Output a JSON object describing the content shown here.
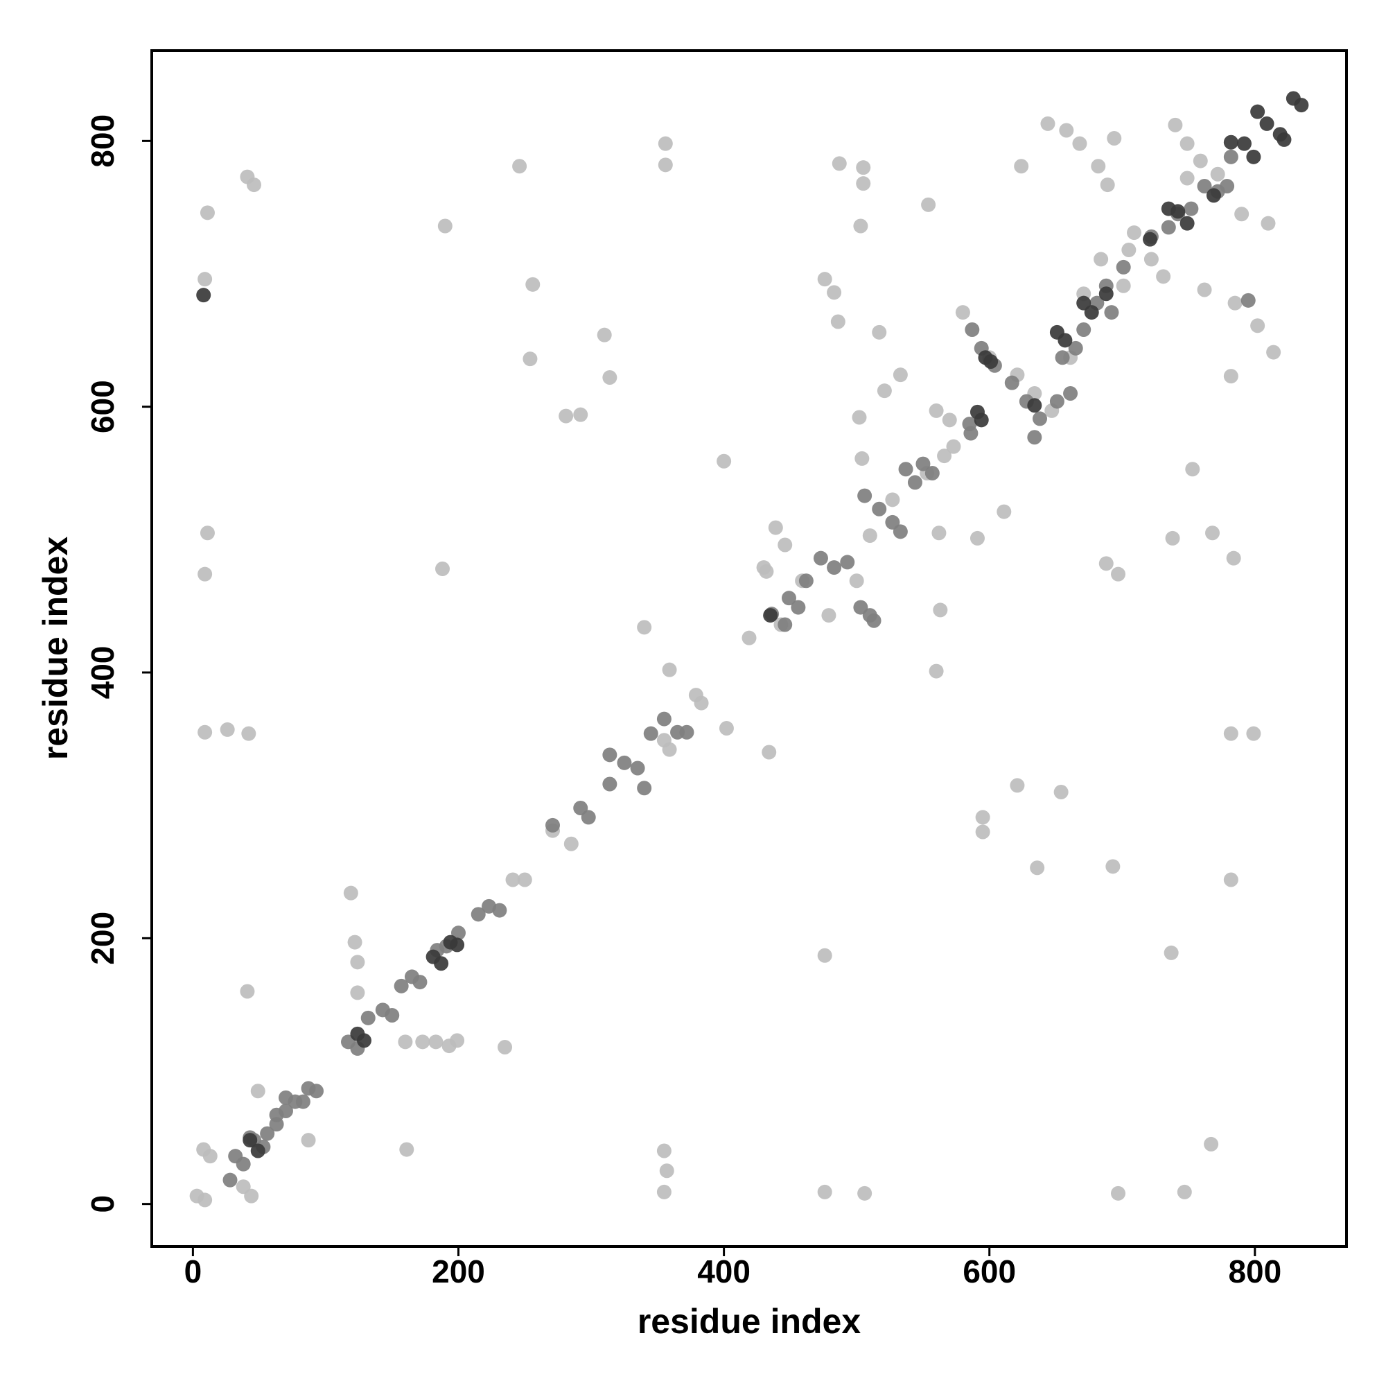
{
  "chart_data": {
    "type": "scatter",
    "xlabel": "residue index",
    "ylabel": "residue index",
    "xlim": [
      -31,
      869
    ],
    "ylim": [
      -32,
      868
    ],
    "xticks": [
      0,
      200,
      400,
      600,
      800
    ],
    "yticks": [
      0,
      200,
      400,
      600,
      800
    ],
    "series": [
      {
        "color": "#bdbdbd",
        "x": [
          3,
          9,
          8,
          13,
          38,
          44,
          9,
          11,
          11,
          9,
          9,
          26,
          42,
          41,
          46,
          41,
          49,
          87,
          119,
          122,
          124,
          124,
          160,
          161,
          173,
          183,
          193,
          199,
          235,
          190,
          188,
          246,
          256,
          254,
          281,
          292,
          310,
          314,
          356,
          356,
          340,
          359,
          379,
          383,
          402,
          355,
          357,
          355,
          241,
          250,
          434,
          400,
          419,
          430,
          487,
          505,
          503,
          505,
          476,
          483,
          502,
          504,
          554,
          521,
          476,
          476,
          506,
          562,
          560,
          563,
          624,
          644,
          694,
          595,
          595,
          621,
          654,
          636,
          693,
          688,
          697,
          591,
          611,
          738,
          768,
          784,
          753,
          782,
          782,
          799,
          737,
          782,
          767,
          747,
          697,
          814,
          658,
          668,
          682,
          689,
          709,
          722,
          731,
          749,
          759,
          772,
          790,
          810,
          762,
          785,
          802,
          740,
          749,
          580,
          600,
          621,
          634,
          647,
          661,
          671,
          684,
          705,
          701,
          486,
          517,
          533,
          432,
          446,
          459,
          479,
          500,
          510,
          527,
          553,
          566,
          573,
          560,
          570,
          439,
          443,
          355,
          359,
          271,
          285
        ],
        "values": [
          6,
          3,
          41,
          36,
          13,
          6,
          696,
          746,
          505,
          474,
          355,
          357,
          354,
          773,
          767,
          160,
          85,
          48,
          234,
          197,
          182,
          159,
          122,
          41,
          122,
          122,
          119,
          123,
          118,
          736,
          478,
          781,
          692,
          636,
          593,
          594,
          654,
          622,
          798,
          782,
          434,
          402,
          383,
          377,
          358,
          40,
          25,
          9,
          244,
          244,
          340,
          559,
          426,
          479,
          783,
          780,
          736,
          768,
          696,
          686,
          592,
          561,
          752,
          612,
          187,
          9,
          8,
          505,
          401,
          447,
          781,
          813,
          802,
          291,
          280,
          315,
          310,
          253,
          254,
          482,
          474,
          501,
          521,
          501,
          505,
          486,
          553,
          623,
          354,
          354,
          189,
          244,
          45,
          9,
          8,
          641,
          808,
          798,
          781,
          767,
          731,
          711,
          698,
          798,
          785,
          775,
          745,
          738,
          688,
          678,
          661,
          812,
          772,
          671,
          637,
          624,
          610,
          597,
          637,
          685,
          711,
          718,
          691,
          664,
          656,
          624,
          476,
          496,
          469,
          443,
          469,
          503,
          530,
          550,
          563,
          570,
          597,
          590,
          509,
          436,
          349,
          342,
          281,
          271
        ]
      },
      {
        "color": "#7f7f7f",
        "x": [
          32,
          38,
          28,
          56,
          63,
          70,
          77,
          87,
          93,
          83,
          53,
          46,
          43,
          63,
          70,
          117,
          124,
          132,
          143,
          150,
          157,
          165,
          171,
          184,
          191,
          200,
          215,
          223,
          231,
          271,
          292,
          298,
          314,
          325,
          335,
          340,
          345,
          355,
          365,
          372,
          314,
          436,
          446,
          449,
          456,
          462,
          473,
          483,
          493,
          503,
          510,
          513,
          506,
          517,
          527,
          533,
          537,
          544,
          550,
          557,
          585,
          586,
          587,
          594,
          604,
          617,
          628,
          638,
          651,
          661,
          655,
          665,
          671,
          681,
          692,
          701,
          722,
          735,
          742,
          752,
          762,
          772,
          782,
          779,
          795,
          688,
          634
        ],
        "values": [
          36,
          30,
          18,
          53,
          60,
          70,
          77,
          87,
          85,
          77,
          43,
          48,
          50,
          67,
          80,
          122,
          117,
          140,
          146,
          142,
          164,
          171,
          167,
          191,
          194,
          204,
          218,
          224,
          221,
          285,
          298,
          291,
          338,
          332,
          328,
          313,
          354,
          365,
          355,
          355,
          316,
          444,
          436,
          456,
          449,
          469,
          486,
          479,
          483,
          449,
          443,
          439,
          533,
          523,
          513,
          506,
          553,
          543,
          557,
          550,
          587,
          580,
          658,
          644,
          631,
          618,
          604,
          591,
          604,
          610,
          637,
          644,
          658,
          678,
          671,
          705,
          728,
          735,
          745,
          749,
          766,
          762,
          788,
          766,
          680,
          691,
          577
        ]
      },
      {
        "color": "#3a3a3a",
        "x": [
          8,
          49,
          43,
          124,
          129,
          181,
          187,
          194,
          199,
          435,
          597,
          601,
          594,
          591,
          634,
          651,
          657,
          671,
          677,
          688,
          721,
          735,
          742,
          749,
          782,
          792,
          799,
          802,
          809,
          822,
          829,
          835,
          769,
          819
        ],
        "values": [
          684,
          40,
          48,
          128,
          123,
          186,
          181,
          197,
          195,
          443,
          637,
          634,
          590,
          596,
          601,
          656,
          650,
          678,
          671,
          685,
          726,
          749,
          747,
          738,
          799,
          798,
          788,
          822,
          813,
          801,
          832,
          827,
          759,
          805
        ]
      }
    ]
  }
}
